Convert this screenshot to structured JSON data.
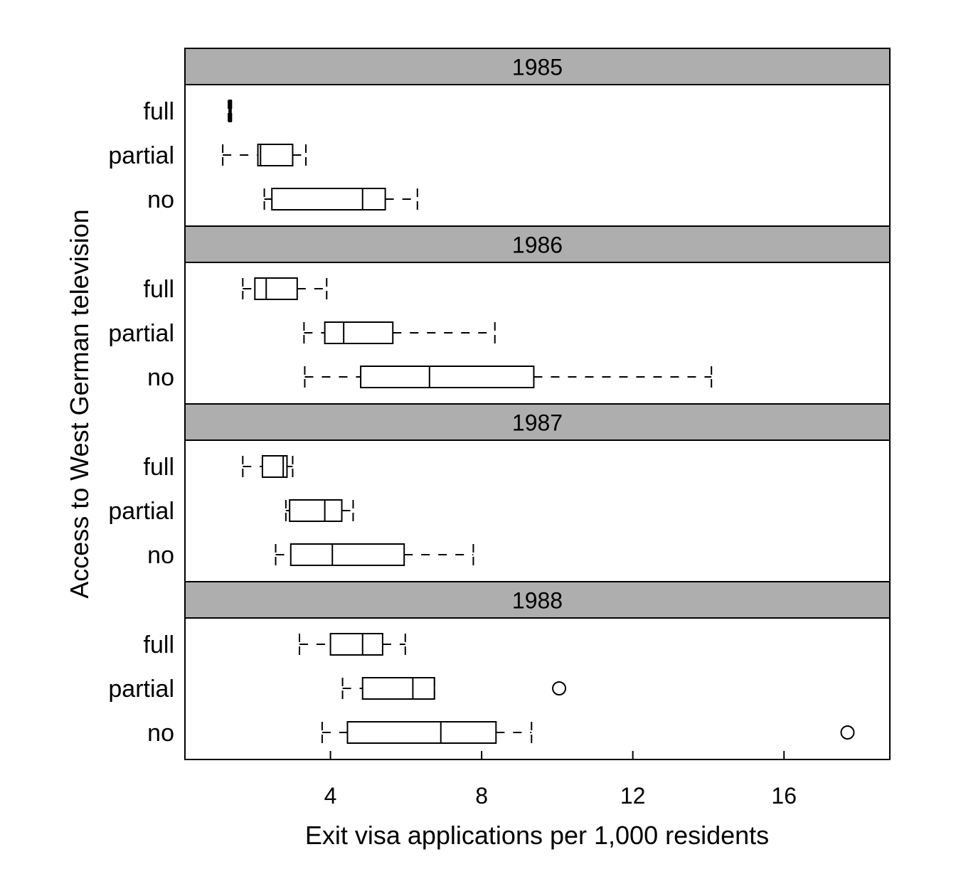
{
  "chart_data": {
    "type": "boxplot",
    "xlabel": "Exit visa applications per 1,000 residents",
    "ylabel": "Access to West German television",
    "xlim": [
      0.15,
      18.8
    ],
    "xticks": [
      4,
      8,
      12,
      16
    ],
    "grid": false,
    "categories": [
      "full",
      "partial",
      "no"
    ],
    "panels": [
      {
        "title": "1985",
        "groups": [
          {
            "category": "full",
            "whisker_low": 1.3,
            "q1": 1.32,
            "median": 1.34,
            "q3": 1.37,
            "whisker_high": 1.38,
            "outliers": []
          },
          {
            "category": "partial",
            "whisker_low": 1.15,
            "q1": 2.08,
            "median": 2.15,
            "q3": 3.0,
            "whisker_high": 3.35,
            "outliers": []
          },
          {
            "category": "no",
            "whisker_low": 2.25,
            "q1": 2.45,
            "median": 4.85,
            "q3": 5.45,
            "whisker_high": 6.3,
            "outliers": []
          }
        ]
      },
      {
        "title": "1986",
        "groups": [
          {
            "category": "full",
            "whisker_low": 1.68,
            "q1": 2.0,
            "median": 2.3,
            "q3": 3.12,
            "whisker_high": 3.9,
            "outliers": []
          },
          {
            "category": "partial",
            "whisker_low": 3.3,
            "q1": 3.85,
            "median": 4.35,
            "q3": 5.65,
            "whisker_high": 8.35,
            "outliers": []
          },
          {
            "category": "no",
            "whisker_low": 3.32,
            "q1": 4.8,
            "median": 6.62,
            "q3": 9.38,
            "whisker_high": 14.08,
            "outliers": []
          }
        ]
      },
      {
        "title": "1987",
        "groups": [
          {
            "category": "full",
            "whisker_low": 1.68,
            "q1": 2.2,
            "median": 2.75,
            "q3": 2.85,
            "whisker_high": 3.0,
            "outliers": []
          },
          {
            "category": "partial",
            "whisker_low": 2.82,
            "q1": 2.92,
            "median": 3.85,
            "q3": 4.3,
            "whisker_high": 4.6,
            "outliers": []
          },
          {
            "category": "no",
            "whisker_low": 2.55,
            "q1": 2.95,
            "median": 4.05,
            "q3": 5.95,
            "whisker_high": 7.78,
            "outliers": []
          }
        ]
      },
      {
        "title": "1988",
        "groups": [
          {
            "category": "full",
            "whisker_low": 3.18,
            "q1": 4.0,
            "median": 4.85,
            "q3": 5.38,
            "whisker_high": 5.98,
            "outliers": []
          },
          {
            "category": "partial",
            "whisker_low": 4.32,
            "q1": 4.85,
            "median": 6.18,
            "q3": 6.75,
            "whisker_high": 6.75,
            "outliers": [
              10.05
            ]
          },
          {
            "category": "no",
            "whisker_low": 3.78,
            "q1": 4.45,
            "median": 6.92,
            "q3": 8.38,
            "whisker_high": 9.32,
            "outliers": [
              17.68
            ]
          }
        ]
      }
    ]
  }
}
